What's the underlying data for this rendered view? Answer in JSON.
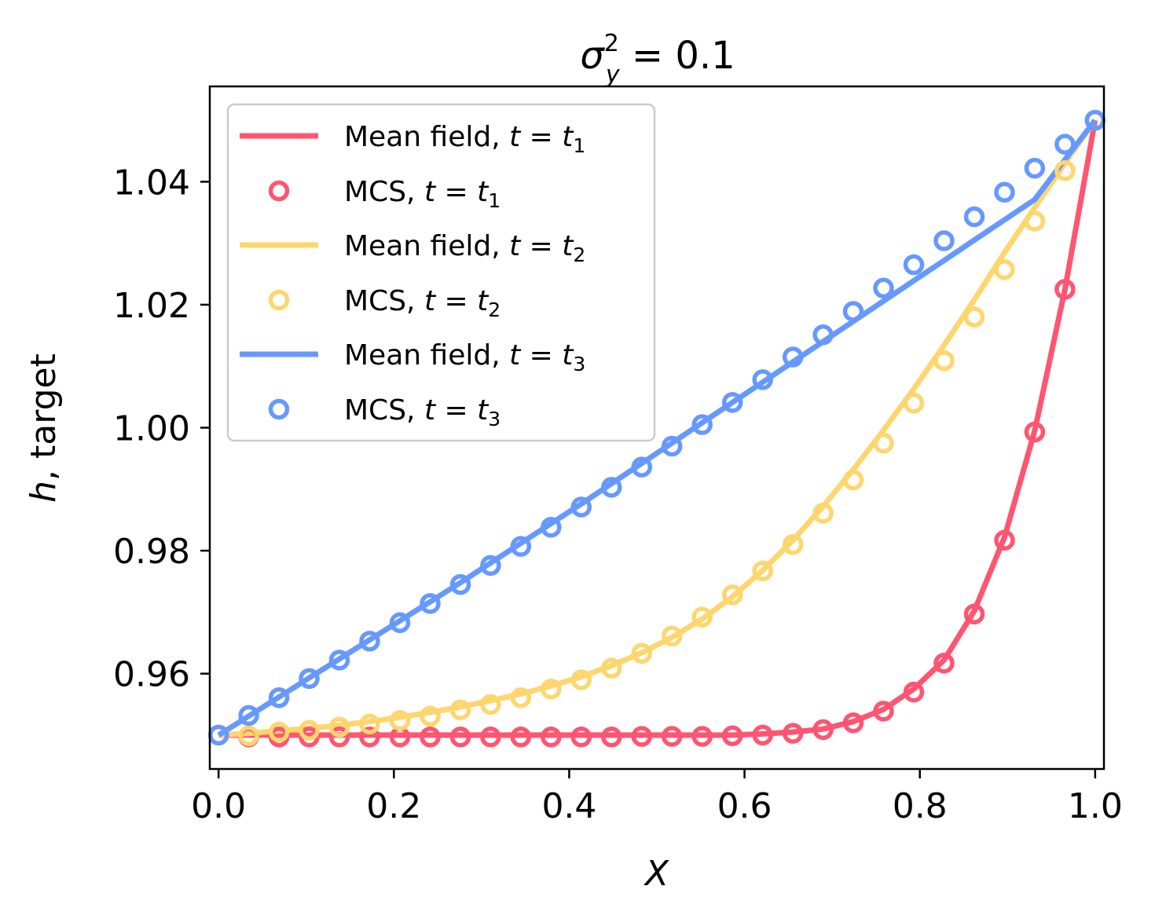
{
  "chart_data": {
    "type": "line",
    "title": "σ_y^2 = 0.1",
    "title_parts": {
      "base": "σ",
      "sup": "2",
      "sub": "y",
      "rest": " = 0.1"
    },
    "xlabel": "X",
    "ylabel": "h, target",
    "ylabel_parts": {
      "italic": "h",
      "rest": ", target"
    },
    "xlim": [
      -0.01,
      1.01
    ],
    "ylim": [
      0.9445,
      1.0555
    ],
    "xticks": [
      0.0,
      0.2,
      0.4,
      0.6,
      0.8,
      1.0
    ],
    "xtick_labels": [
      "0.0",
      "0.2",
      "0.4",
      "0.6",
      "0.8",
      "1.0"
    ],
    "yticks": [
      0.96,
      0.98,
      1.0,
      1.02,
      1.04
    ],
    "ytick_labels": [
      "0.96",
      "0.98",
      "1.00",
      "1.02",
      "1.04"
    ],
    "grid": false,
    "legend_position": "top-left",
    "x_mcs": [
      0.0,
      0.0345,
      0.069,
      0.1034,
      0.1379,
      0.1724,
      0.2069,
      0.2414,
      0.2759,
      0.3103,
      0.3448,
      0.3793,
      0.4138,
      0.4483,
      0.4828,
      0.5172,
      0.5517,
      0.5862,
      0.6207,
      0.6552,
      0.6897,
      0.7241,
      0.7586,
      0.7931,
      0.8276,
      0.8621,
      0.8966,
      0.931,
      0.9655,
      1.0
    ],
    "series": [
      {
        "name": "Mean field, t = t1",
        "legend_prefix": "Mean field, ",
        "legend_sub": "1",
        "kind": "line",
        "group": "t1",
        "color": "#FF5571",
        "x": [
          0.0,
          0.0345,
          0.069,
          0.1034,
          0.1379,
          0.1724,
          0.2069,
          0.2414,
          0.2759,
          0.3103,
          0.3448,
          0.3793,
          0.4138,
          0.4483,
          0.4828,
          0.5172,
          0.5517,
          0.5862,
          0.6207,
          0.6552,
          0.6897,
          0.7241,
          0.7586,
          0.7931,
          0.8276,
          0.8621,
          0.8966,
          0.931,
          0.9655,
          1.0
        ],
        "values": [
          0.95,
          0.95,
          0.95,
          0.95,
          0.95,
          0.95,
          0.95,
          0.95,
          0.95,
          0.95,
          0.95,
          0.95,
          0.95,
          0.95,
          0.95,
          0.95,
          0.95,
          0.95,
          0.9502,
          0.9505,
          0.951,
          0.9522,
          0.9542,
          0.9575,
          0.9622,
          0.9702,
          0.9822,
          0.9995,
          1.0225,
          1.05
        ]
      },
      {
        "name": "MCS, t = t1",
        "legend_prefix": "MCS, ",
        "legend_sub": "1",
        "kind": "markers",
        "group": "t1",
        "color": "#FF5571",
        "values": [
          0.95,
          0.9497,
          0.9497,
          0.9497,
          0.9497,
          0.9497,
          0.9497,
          0.9497,
          0.9497,
          0.9497,
          0.9497,
          0.9497,
          0.9497,
          0.9497,
          0.9498,
          0.9498,
          0.9498,
          0.9499,
          0.95,
          0.9503,
          0.9509,
          0.952,
          0.9539,
          0.957,
          0.9617,
          0.9697,
          0.9817,
          0.9993,
          1.0225,
          1.05
        ]
      },
      {
        "name": "Mean field, t = t2",
        "legend_prefix": "Mean field, ",
        "legend_sub": "2",
        "kind": "line",
        "group": "t2",
        "color": "#FFD66E",
        "x": [
          0.0,
          0.0345,
          0.069,
          0.1034,
          0.1379,
          0.1724,
          0.2069,
          0.2414,
          0.2759,
          0.3103,
          0.3448,
          0.3793,
          0.4138,
          0.4483,
          0.4828,
          0.5172,
          0.5517,
          0.5862,
          0.6207,
          0.6552,
          0.6897,
          0.7241,
          0.7586,
          0.7931,
          0.8276,
          0.8621,
          0.8966,
          0.931,
          0.9655,
          1.0
        ],
        "values": [
          0.95,
          0.9503,
          0.9507,
          0.9511,
          0.9516,
          0.9522,
          0.9529,
          0.9537,
          0.9546,
          0.9556,
          0.9567,
          0.958,
          0.9595,
          0.9613,
          0.9634,
          0.9659,
          0.9689,
          0.9725,
          0.9768,
          0.9817,
          0.9872,
          0.9932,
          0.9996,
          1.0063,
          1.0134,
          1.0208,
          1.0285,
          1.0358,
          1.043,
          1.05
        ]
      },
      {
        "name": "MCS, t = t2",
        "legend_prefix": "MCS, ",
        "legend_sub": "2",
        "kind": "markers",
        "group": "t2",
        "color": "#FFD66E",
        "values": [
          0.95,
          0.9499,
          0.9505,
          0.9508,
          0.9513,
          0.9518,
          0.9524,
          0.9531,
          0.9541,
          0.955,
          0.9561,
          0.9575,
          0.959,
          0.9609,
          0.9633,
          0.9661,
          0.9692,
          0.9728,
          0.9767,
          0.981,
          0.9861,
          0.9915,
          0.9975,
          1.004,
          1.0109,
          1.018,
          1.0257,
          1.0336,
          1.0418,
          1.05
        ]
      },
      {
        "name": "Mean field, t = t3",
        "legend_prefix": "Mean field, ",
        "legend_sub": "3",
        "kind": "line",
        "group": "t3",
        "color": "#6699FF",
        "x": [
          0.0,
          0.0345,
          0.069,
          0.1034,
          0.1379,
          0.1724,
          0.2069,
          0.2414,
          0.2759,
          0.3103,
          0.3448,
          0.3793,
          0.4138,
          0.4483,
          0.4828,
          0.5172,
          0.5517,
          0.5862,
          0.6207,
          0.6552,
          0.6897,
          0.7241,
          0.7586,
          0.7931,
          0.8276,
          0.8621,
          0.8966,
          0.931,
          0.9655,
          1.0
        ],
        "values": [
          0.95,
          0.9531,
          0.9562,
          0.9593,
          0.9624,
          0.9655,
          0.9686,
          0.9717,
          0.9748,
          0.978,
          0.9812,
          0.9844,
          0.9876,
          0.9909,
          0.9942,
          0.9975,
          1.0008,
          1.0041,
          1.0074,
          1.0107,
          1.014,
          1.0173,
          1.0206,
          1.0239,
          1.0272,
          1.0305,
          1.0338,
          1.0371,
          1.0436,
          1.05
        ]
      },
      {
        "name": "MCS, t = t3",
        "legend_prefix": "MCS, ",
        "legend_sub": "3",
        "kind": "markers",
        "group": "t3",
        "color": "#6699FF",
        "values": [
          0.95,
          0.9532,
          0.9561,
          0.9592,
          0.9622,
          0.9653,
          0.9683,
          0.9714,
          0.9745,
          0.9776,
          0.9807,
          0.9838,
          0.9871,
          0.9903,
          0.9936,
          0.997,
          1.0005,
          1.0041,
          1.0078,
          1.0115,
          1.0151,
          1.0189,
          1.0227,
          1.0265,
          1.0304,
          1.0343,
          1.0383,
          1.0422,
          1.0461,
          1.05
        ]
      }
    ]
  }
}
